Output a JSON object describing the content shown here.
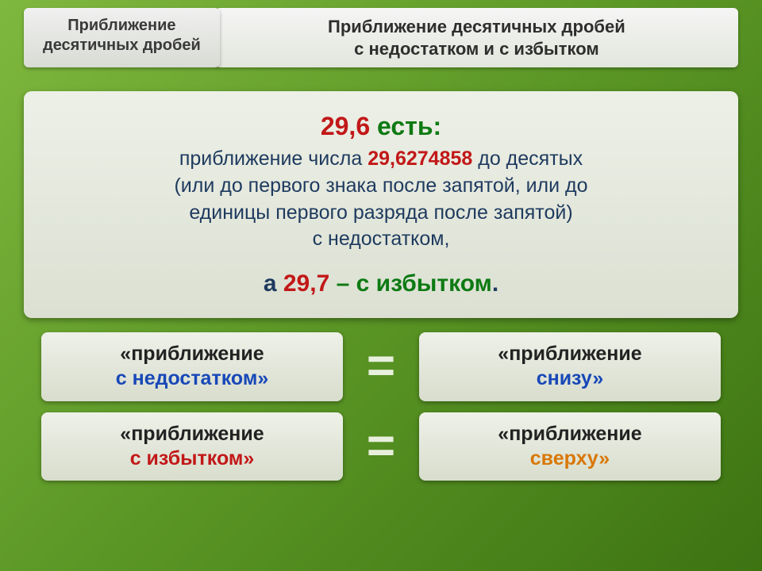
{
  "header": {
    "left_line1": "Приближение",
    "left_line2": "десятичных дробей",
    "right_line1": "Приближение десятичных дробей",
    "right_line2": "с недостатком и с избытком"
  },
  "main": {
    "title_num": "29,6",
    "title_word": " есть:",
    "body_pre": "приближение числа ",
    "body_num": "29,6274858",
    "body_post": " до десятых",
    "body_line2": "(или до первого знака после запятой, или до",
    "body_line3": "единицы первого разряда после запятой)",
    "body_line4": "с недостатком,",
    "highlight_pre": "а ",
    "highlight_num": "29,7",
    "highlight_post": " – с избытком",
    "highlight_dot": "."
  },
  "pairs": {
    "row1": {
      "left_l1": "«приближение",
      "left_l2": "с недостатком»",
      "right_l1": "«приближение",
      "right_l2": "снизу»"
    },
    "row2": {
      "left_l1": "«приближение",
      "left_l2": "с избытком»",
      "right_l1": "«приближение",
      "right_l2": "сверху»"
    },
    "equals": "="
  },
  "colors": {
    "red": "#c21818",
    "green": "#0d7a13",
    "blue": "#1848b8",
    "orange": "#d97706",
    "bg_grad_top": "#7fb83e",
    "bg_grad_bottom": "#3d7312",
    "box_grad_top": "#edf0e7",
    "box_grad_bottom": "#dbe0d2",
    "body_text": "#1e3a5f"
  }
}
